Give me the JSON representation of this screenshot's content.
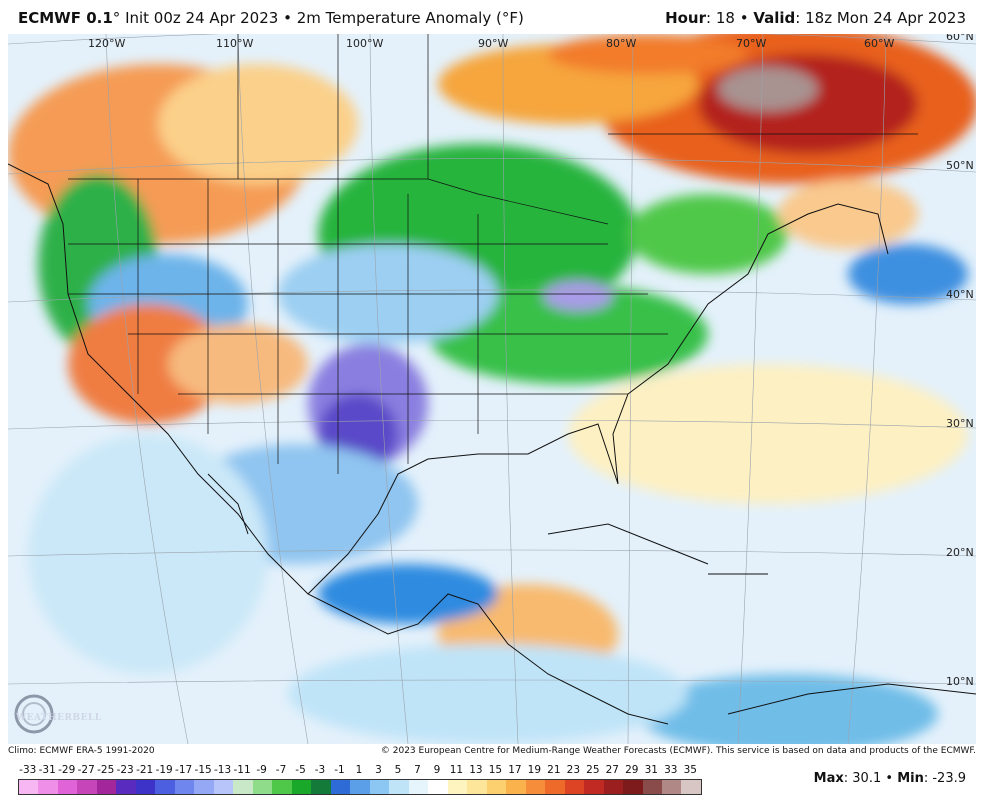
{
  "header": {
    "model": "ECMWF 0.1",
    "degree": "°",
    "init": "Init 00z 24 Apr 2023",
    "separator": "•",
    "field": "2m Temperature Anomaly (°F)",
    "hour_label": "Hour",
    "hour_value": "18",
    "valid_label": "Valid",
    "valid_value": "18z Mon 24 Apr 2023"
  },
  "map": {
    "longitude_labels": [
      "120°W",
      "110°W",
      "100°W",
      "90°W",
      "80°W",
      "70°W",
      "60°W"
    ],
    "latitude_labels": [
      "60°N",
      "50°N",
      "40°N",
      "30°N",
      "20°N",
      "10°N"
    ],
    "colors": {
      "ocean_base": "#e6f2fb",
      "land_outline": "#111111"
    }
  },
  "footer": {
    "climo": "Climo: ECMWF ERA-5 1991-2020",
    "copyright": "© 2023 European Centre for Medium-Range Weather Forecasts (ECMWF). This service is based on data and products of the ECMWF."
  },
  "colorbar": {
    "ticks": [
      "-33",
      "-31",
      "-29",
      "-27",
      "-25",
      "-23",
      "-21",
      "-19",
      "-17",
      "-15",
      "-13",
      "-11",
      "-9",
      "-7",
      "-5",
      "-3",
      "-1",
      "1",
      "3",
      "5",
      "7",
      "9",
      "11",
      "13",
      "15",
      "17",
      "19",
      "21",
      "23",
      "25",
      "27",
      "29",
      "31",
      "33",
      "35"
    ],
    "colors": [
      "#f7b7f2",
      "#f08fe8",
      "#e064d8",
      "#c645b8",
      "#a3279a",
      "#5a2bbf",
      "#3d33c8",
      "#4b5fe0",
      "#6f86ee",
      "#95a8f6",
      "#b7c5fa",
      "#c9e8c7",
      "#8fdc8a",
      "#4fc84a",
      "#1aa82a",
      "#137a3a",
      "#2f6bd6",
      "#5b9fe8",
      "#8cc6f2",
      "#bfe4f8",
      "#e6f4fb",
      "#ffffff",
      "#fdf4c0",
      "#fde59a",
      "#fcd06e",
      "#f9b24c",
      "#f58d3a",
      "#ee6a2b",
      "#dc4424",
      "#c02a22",
      "#9a1f1e",
      "#7c1a1c",
      "#8a4c4a",
      "#b08886",
      "#d8c6c4"
    ]
  },
  "stats": {
    "max_label": "Max",
    "max_value": "30.1",
    "min_label": "Min",
    "min_value": "-23.9"
  },
  "logo": {
    "text": "WEATHERBELL"
  }
}
